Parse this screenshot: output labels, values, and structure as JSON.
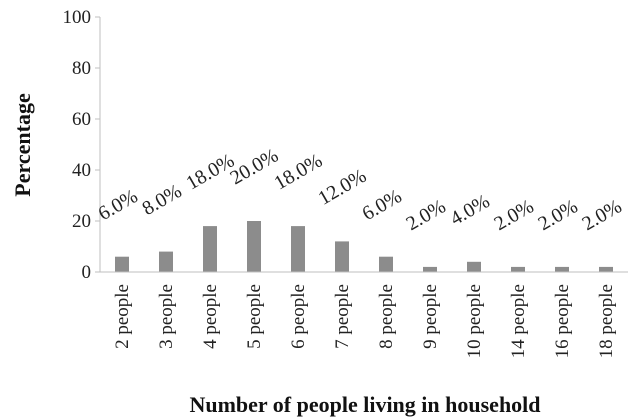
{
  "chart_data": {
    "type": "bar",
    "categories": [
      "2 people",
      "3 people",
      "4 people",
      "5 people",
      "6 people",
      "7 people",
      "8 people",
      "9 people",
      "10 people",
      "14 people",
      "16 people",
      "18 people"
    ],
    "values": [
      6,
      8,
      18,
      20,
      18,
      12,
      6,
      2,
      4,
      2,
      2,
      2
    ],
    "data_labels": [
      "6.0%",
      "8.0%",
      "18.0%",
      "20.0%",
      "18.0%",
      "12.0%",
      "6.0%",
      "2.0%",
      "4.0%",
      "2.0%",
      "2.0%",
      "2.0%"
    ],
    "ylabel": "Percentage",
    "xlabel": "Number of people living in household",
    "ylim": [
      0,
      100
    ],
    "yticks": [
      "0",
      "20",
      "40",
      "60",
      "80",
      "100"
    ],
    "grid": false,
    "bar_color": "#8c8c8c"
  }
}
